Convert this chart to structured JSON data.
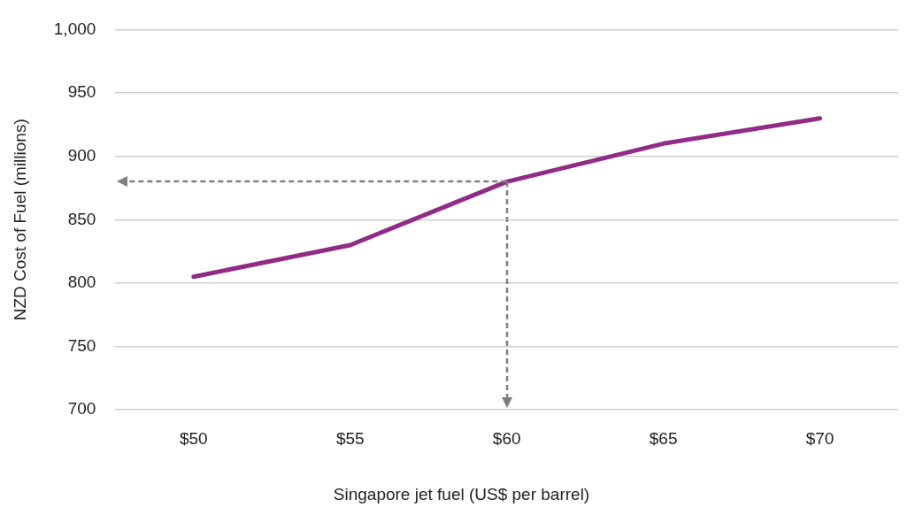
{
  "chart_data": {
    "type": "line",
    "xlabel": "Singapore jet fuel (US$ per barrel)",
    "ylabel": "NZD Cost of Fuel (millions)",
    "categories": [
      "$50",
      "$55",
      "$60",
      "$65",
      "$70"
    ],
    "series": [
      {
        "color": "#912b86",
        "values": [
          805,
          830,
          880,
          910,
          930
        ]
      }
    ],
    "ylim": [
      700,
      1000
    ],
    "yticks": [
      700,
      750,
      800,
      850,
      900,
      950,
      {
        "value": 1000,
        "label": "1,000"
      }
    ],
    "grid": "y",
    "legend": false,
    "marker": "none",
    "line_style": "solid"
  }
}
